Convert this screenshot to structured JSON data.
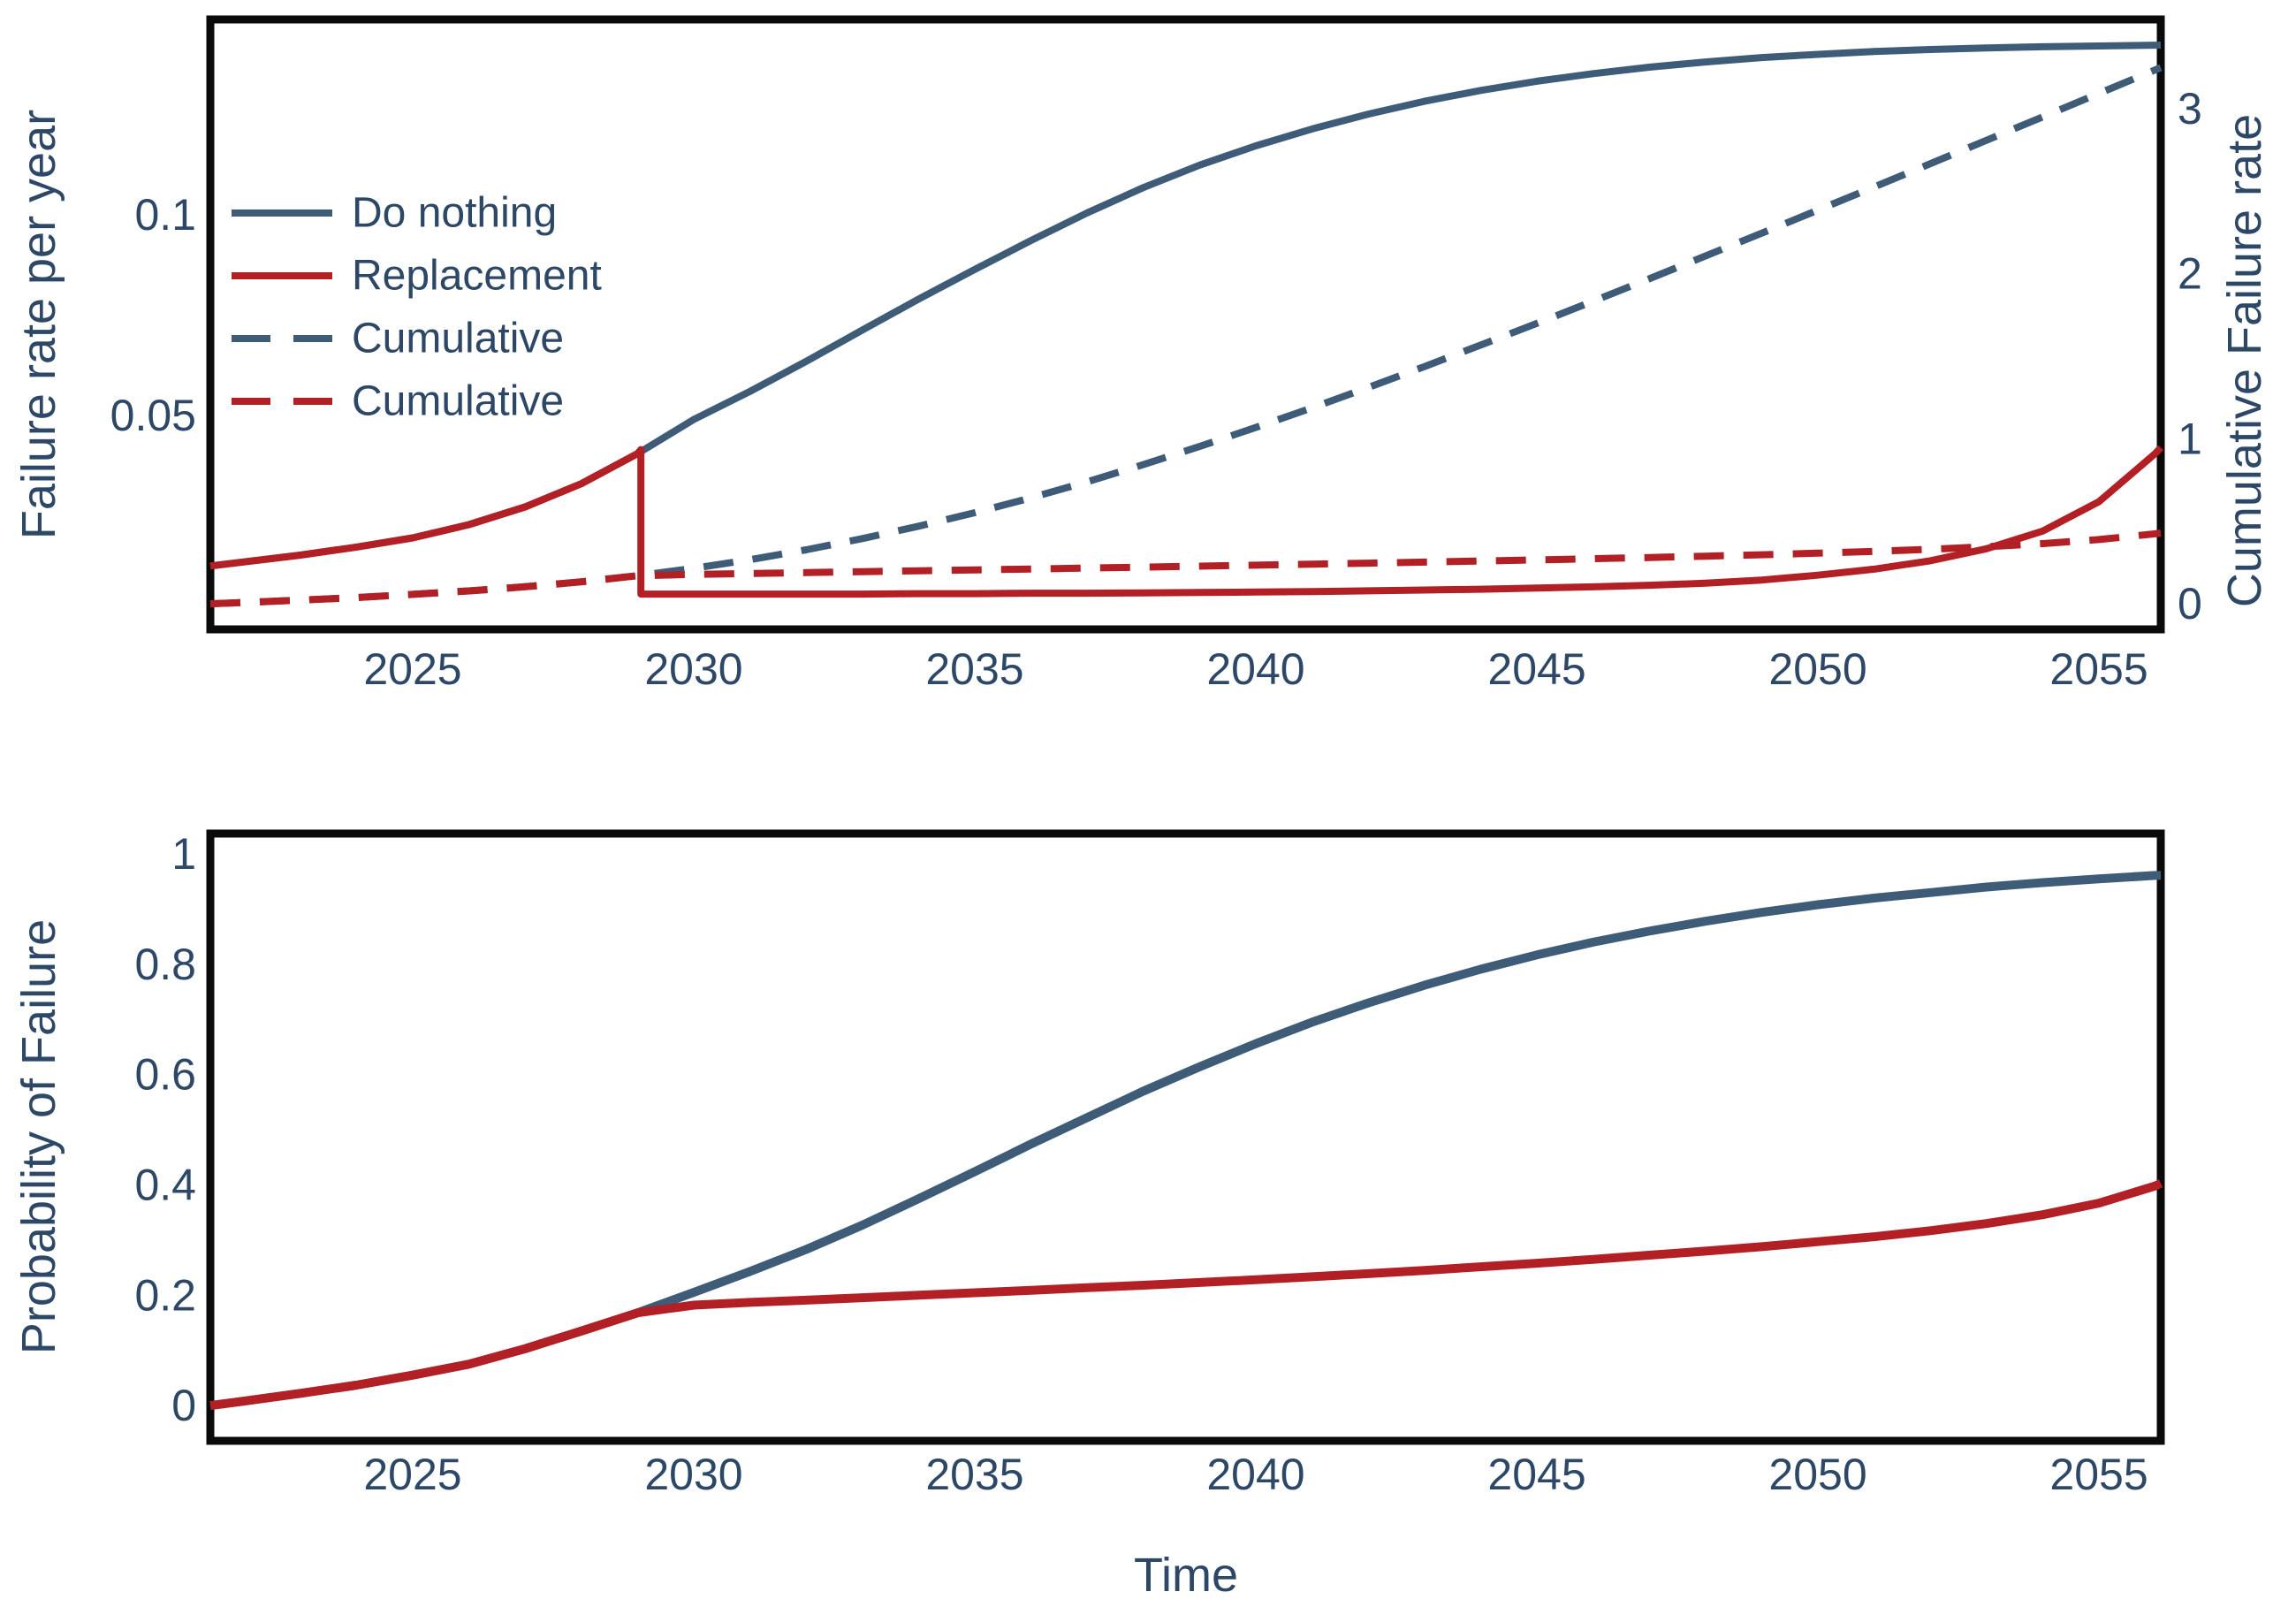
{
  "figure": {
    "background": "#ffffff",
    "text_color": "#2d4766",
    "axis_color": "#0a0a0a",
    "series_colors": {
      "do_nothing": "#3e5c78",
      "replacement": "#b21f24"
    }
  },
  "chart_data": [
    {
      "type": "line",
      "title": "",
      "xlabel": "",
      "ylabel_left": "Failure rate per year",
      "ylabel_right": "Cumulative Failure rate",
      "xlim": [
        2021.4,
        2056.1
      ],
      "ylim_left": [
        -0.0033,
        0.1487
      ],
      "ylim_right": [
        -0.155,
        3.54
      ],
      "grid": false,
      "legend_position": "upper left",
      "x_ticks": [
        2025,
        2030,
        2035,
        2040,
        2045,
        2050,
        2055
      ],
      "y_ticks_left": [
        {
          "v": 0.05,
          "label": "0.05"
        },
        {
          "v": 0.1,
          "label": "0.1"
        }
      ],
      "y_ticks_right": [
        {
          "v": 0,
          "label": "0"
        },
        {
          "v": 1,
          "label": "1"
        },
        {
          "v": 2,
          "label": "2"
        },
        {
          "v": 3,
          "label": "3"
        }
      ],
      "legend": [
        {
          "label": "Do nothing",
          "color": "do_nothing",
          "dash": false
        },
        {
          "label": "Replacement",
          "color": "replacement",
          "dash": false
        },
        {
          "label": "Cumulative",
          "color": "do_nothing",
          "dash": true
        },
        {
          "label": "Cumulative",
          "color": "replacement",
          "dash": true
        }
      ],
      "series": [
        {
          "name": "failure-rate-do-nothing",
          "axis": "left",
          "color": "do_nothing",
          "dash": false,
          "x": [
            2021.4,
            2022,
            2023,
            2024,
            2025,
            2026,
            2027,
            2028,
            2029,
            2030,
            2031,
            2032,
            2033,
            2034,
            2035,
            2036,
            2037,
            2038,
            2039,
            2040,
            2041,
            2042,
            2043,
            2044,
            2045,
            2046,
            2047,
            2048,
            2049,
            2050,
            2051,
            2052,
            2053,
            2054,
            2055,
            2056,
            2056.1
          ],
          "y": [
            0.0125,
            0.0135,
            0.0152,
            0.0172,
            0.0195,
            0.0228,
            0.0272,
            0.033,
            0.0405,
            0.049,
            0.056,
            0.0635,
            0.0713,
            0.079,
            0.0864,
            0.0936,
            0.1005,
            0.1068,
            0.1124,
            0.1172,
            0.1214,
            0.1251,
            0.1283,
            0.131,
            0.1333,
            0.1352,
            0.1368,
            0.1381,
            0.1392,
            0.14,
            0.1407,
            0.1412,
            0.1416,
            0.1419,
            0.1421,
            0.1423,
            0.1423
          ]
        },
        {
          "name": "cumulative-do-nothing",
          "axis": "right",
          "color": "do_nothing",
          "dash": true,
          "x": [
            2021.4,
            2022,
            2023,
            2024,
            2025,
            2026,
            2027,
            2028,
            2029,
            2030,
            2031,
            2032,
            2033,
            2034,
            2035,
            2036,
            2037,
            2038,
            2039,
            2040,
            2041,
            2042,
            2043,
            2044,
            2045,
            2046,
            2047,
            2048,
            2049,
            2050,
            2051,
            2052,
            2053,
            2054,
            2055,
            2056,
            2056.1
          ],
          "y": [
            0,
            0.008,
            0.022,
            0.038,
            0.057,
            0.078,
            0.103,
            0.133,
            0.17,
            0.215,
            0.267,
            0.327,
            0.395,
            0.47,
            0.552,
            0.642,
            0.739,
            0.843,
            0.953,
            1.068,
            1.187,
            1.31,
            1.437,
            1.567,
            1.699,
            1.833,
            1.969,
            2.107,
            2.245,
            2.385,
            2.525,
            2.666,
            2.808,
            2.95,
            3.092,
            3.234,
            3.248
          ]
        },
        {
          "name": "cumulative-replacement",
          "axis": "right",
          "color": "replacement",
          "dash": true,
          "x": [
            2021.4,
            2022,
            2023,
            2024,
            2025,
            2026,
            2027,
            2028,
            2029,
            2030,
            2031,
            2032,
            2033,
            2034,
            2035,
            2036,
            2037,
            2038,
            2039,
            2040,
            2041,
            2042,
            2043,
            2044,
            2045,
            2046,
            2047,
            2048,
            2049,
            2050,
            2051,
            2052,
            2053,
            2054,
            2055,
            2056,
            2056.1
          ],
          "y": [
            0,
            0.008,
            0.022,
            0.038,
            0.057,
            0.078,
            0.103,
            0.133,
            0.17,
            0.178,
            0.1835,
            0.189,
            0.1945,
            0.2,
            0.2055,
            0.211,
            0.2165,
            0.222,
            0.228,
            0.234,
            0.24,
            0.246,
            0.2525,
            0.259,
            0.266,
            0.273,
            0.2805,
            0.2885,
            0.297,
            0.3065,
            0.3175,
            0.33,
            0.3455,
            0.3645,
            0.389,
            0.424,
            0.428
          ]
        },
        {
          "name": "failure-rate-replacement",
          "axis": "left",
          "color": "replacement",
          "dash": false,
          "x": [
            2021.4,
            2022,
            2023,
            2024,
            2025,
            2026,
            2027,
            2028,
            2029,
            2029.06,
            2029.06,
            2030,
            2031,
            2032,
            2033,
            2034,
            2035,
            2036,
            2037,
            2038,
            2039,
            2040,
            2041,
            2042,
            2043,
            2044,
            2045,
            2046,
            2047,
            2048,
            2049,
            2050,
            2051,
            2052,
            2053,
            2054,
            2055,
            2056,
            2056.1
          ],
          "y": [
            0.0125,
            0.0135,
            0.0152,
            0.0172,
            0.0195,
            0.0228,
            0.0272,
            0.033,
            0.0405,
            0.0415,
            0.0055,
            0.0055,
            0.0055,
            0.0055,
            0.0055,
            0.0056,
            0.0056,
            0.0057,
            0.0057,
            0.0058,
            0.0059,
            0.006,
            0.0061,
            0.0063,
            0.0065,
            0.0067,
            0.007,
            0.0073,
            0.0077,
            0.0082,
            0.009,
            0.0102,
            0.0117,
            0.0138,
            0.0168,
            0.0212,
            0.0285,
            0.0405,
            0.042
          ]
        }
      ]
    },
    {
      "type": "line",
      "title": "",
      "xlabel": "Time",
      "ylabel_left": "Probability of Failure",
      "xlim": [
        2021.4,
        2056.1
      ],
      "ylim_left": [
        -0.064,
        1.037
      ],
      "grid": false,
      "x_ticks": [
        2025,
        2030,
        2035,
        2040,
        2045,
        2050,
        2055
      ],
      "y_ticks_left": [
        {
          "v": 0,
          "label": "0"
        },
        {
          "v": 0.2,
          "label": "0.2"
        },
        {
          "v": 0.4,
          "label": "0.4"
        },
        {
          "v": 0.6,
          "label": "0.6"
        },
        {
          "v": 0.8,
          "label": "0.8"
        },
        {
          "v": 1,
          "label": "1"
        }
      ],
      "series": [
        {
          "name": "prob-failure-do-nothing",
          "axis": "left",
          "color": "do_nothing",
          "dash": false,
          "x": [
            2021.4,
            2022,
            2023,
            2024,
            2025,
            2026,
            2027,
            2028,
            2029,
            2030,
            2031,
            2032,
            2033,
            2034,
            2035,
            2036,
            2037,
            2038,
            2039,
            2040,
            2041,
            2042,
            2043,
            2044,
            2045,
            2046,
            2047,
            2048,
            2049,
            2050,
            2051,
            2052,
            2053,
            2054,
            2055,
            2056,
            2056.1
          ],
          "y": [
            0,
            0.008,
            0.022,
            0.037,
            0.055,
            0.075,
            0.103,
            0.135,
            0.168,
            0.205,
            0.243,
            0.283,
            0.327,
            0.375,
            0.424,
            0.474,
            0.522,
            0.57,
            0.614,
            0.656,
            0.695,
            0.73,
            0.762,
            0.791,
            0.817,
            0.84,
            0.86,
            0.878,
            0.894,
            0.908,
            0.92,
            0.93,
            0.94,
            0.948,
            0.955,
            0.961,
            0.961
          ]
        },
        {
          "name": "prob-failure-replacement",
          "axis": "left",
          "color": "replacement",
          "dash": false,
          "x": [
            2021.4,
            2022,
            2023,
            2024,
            2025,
            2026,
            2027,
            2028,
            2029,
            2030,
            2031,
            2032,
            2033,
            2034,
            2035,
            2036,
            2037,
            2038,
            2039,
            2040,
            2041,
            2042,
            2043,
            2044,
            2045,
            2046,
            2047,
            2048,
            2049,
            2050,
            2051,
            2052,
            2053,
            2054,
            2055,
            2056,
            2056.1
          ],
          "y": [
            0,
            0.008,
            0.022,
            0.037,
            0.055,
            0.075,
            0.103,
            0.135,
            0.168,
            0.182,
            0.187,
            0.191,
            0.1955,
            0.2,
            0.2045,
            0.209,
            0.2135,
            0.218,
            0.223,
            0.228,
            0.2335,
            0.239,
            0.245,
            0.2515,
            0.258,
            0.265,
            0.2725,
            0.28,
            0.288,
            0.297,
            0.306,
            0.317,
            0.33,
            0.346,
            0.367,
            0.398,
            0.403
          ]
        }
      ]
    }
  ]
}
